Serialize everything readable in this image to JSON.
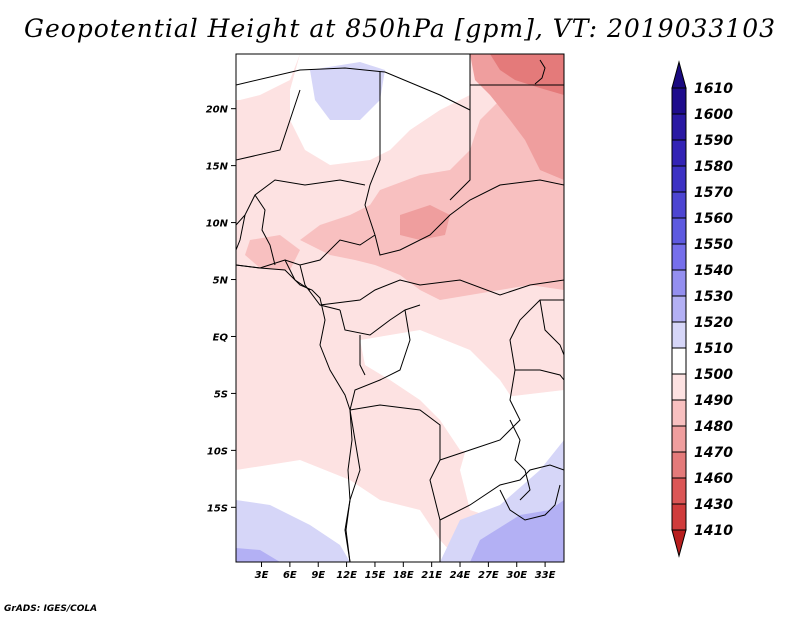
{
  "title": "Geopotential Height at 850hPa [gpm], VT: 2019033103",
  "credit": "GrADS: IGES/COLA",
  "map": {
    "lat_labels": [
      {
        "label": "20N",
        "lat": 20
      },
      {
        "label": "15N",
        "lat": 15
      },
      {
        "label": "10N",
        "lat": 10
      },
      {
        "label": "5N",
        "lat": 5
      },
      {
        "label": "EQ",
        "lat": 0
      },
      {
        "label": "5S",
        "lat": -5
      },
      {
        "label": "10S",
        "lat": -10
      },
      {
        "label": "15S",
        "lat": -15
      }
    ],
    "lon_labels": [
      {
        "label": "3E",
        "lon": 3
      },
      {
        "label": "6E",
        "lon": 6
      },
      {
        "label": "9E",
        "lon": 9
      },
      {
        "label": "12E",
        "lon": 12
      },
      {
        "label": "15E",
        "lon": 15
      },
      {
        "label": "18E",
        "lon": 18
      },
      {
        "label": "21E",
        "lon": 21
      },
      {
        "label": "24E",
        "lon": 24
      },
      {
        "label": "27E",
        "lon": 27
      },
      {
        "label": "30E",
        "lon": 30
      },
      {
        "label": "33E",
        "lon": 33
      }
    ],
    "lon_range": [
      0.3,
      35
    ],
    "lat_range": [
      -19.8,
      24.8
    ]
  },
  "colorbar": {
    "levels": [
      {
        "label": "1610",
        "color": "#1e0c8c"
      },
      {
        "label": "1600",
        "color": "#2a19a3"
      },
      {
        "label": "1590",
        "color": "#3323b5"
      },
      {
        "label": "1580",
        "color": "#3d32c4"
      },
      {
        "label": "1570",
        "color": "#4d45d2"
      },
      {
        "label": "1560",
        "color": "#5e5ae0"
      },
      {
        "label": "1550",
        "color": "#766feb"
      },
      {
        "label": "1540",
        "color": "#948ff0"
      },
      {
        "label": "1530",
        "color": "#b3b0f4"
      },
      {
        "label": "1520",
        "color": "#d6d6f8"
      },
      {
        "label": "1510",
        "color": "#ffffff"
      },
      {
        "label": "1500",
        "color": "#fde2e2"
      },
      {
        "label": "1490",
        "color": "#f8c0c0"
      },
      {
        "label": "1480",
        "color": "#ef9e9e"
      },
      {
        "label": "1470",
        "color": "#e47a7a"
      },
      {
        "label": "1460",
        "color": "#db5656"
      },
      {
        "label": "1430",
        "color": "#d03c3c"
      },
      {
        "label": "1410",
        "color": "#c52a2a"
      }
    ],
    "top_cap_color": "#1a0a80",
    "bottom_cap_color": "#b81e1e"
  }
}
